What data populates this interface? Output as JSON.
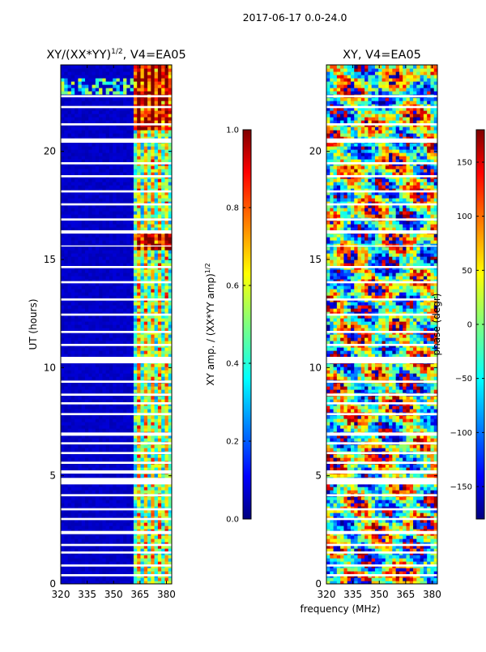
{
  "figure": {
    "suptitle": "2017-06-17 0.0-24.0",
    "xlabel": "frequency (MHz)"
  },
  "colors": {
    "jet": [
      "#00007f",
      "#0000ff",
      "#007fff",
      "#00ffff",
      "#7fff7f",
      "#ffff00",
      "#ff7f00",
      "#ff0000",
      "#7f0000"
    ],
    "gap": "#ffffff"
  },
  "chart_data": [
    {
      "type": "heatmap",
      "title_main": "XY/(XX*YY)",
      "title_sup": "1/2",
      "title_rest": ", V4=EA05",
      "ylabel": "UT (hours)",
      "xlim": [
        320,
        383
      ],
      "ylim": [
        0,
        24
      ],
      "xticks": [
        320,
        335,
        350,
        365,
        380
      ],
      "yticks": [
        0,
        5,
        10,
        15,
        20
      ],
      "colorbar": {
        "label_main": "XY amp. / (XX*YY amp)",
        "label_sup": "1/2",
        "range": [
          0.0,
          1.0
        ],
        "ticks": [
          "0.0",
          "0.2",
          "0.4",
          "0.6",
          "0.8",
          "1.0"
        ]
      },
      "signal_band_MHz": [
        360,
        383
      ],
      "strong_rfi_channels_MHz": [
        360,
        364,
        368,
        372,
        376,
        380
      ],
      "bright_time_ranges_UT": [
        [
          15.3,
          16.2
        ],
        [
          21.0,
          24.0
        ]
      ],
      "data_gaps_UT": [
        [
          0.35,
          0.45
        ],
        [
          0.8,
          0.9
        ],
        [
          1.4,
          1.5
        ],
        [
          1.75,
          1.85
        ],
        [
          2.3,
          2.45
        ],
        [
          2.95,
          3.05
        ],
        [
          3.4,
          3.5
        ],
        [
          4.05,
          4.15
        ],
        [
          4.6,
          4.9
        ],
        [
          5.1,
          5.25
        ],
        [
          5.55,
          5.65
        ],
        [
          6.0,
          6.1
        ],
        [
          6.45,
          6.55
        ],
        [
          6.85,
          7.0
        ],
        [
          7.8,
          7.9
        ],
        [
          8.3,
          8.4
        ],
        [
          8.7,
          8.8
        ],
        [
          9.3,
          9.4
        ],
        [
          10.2,
          10.5
        ],
        [
          11.0,
          11.1
        ],
        [
          11.6,
          11.7
        ],
        [
          12.4,
          12.5
        ],
        [
          13.1,
          13.2
        ],
        [
          13.9,
          14.0
        ],
        [
          14.6,
          14.7
        ],
        [
          15.6,
          15.65
        ],
        [
          16.2,
          16.35
        ],
        [
          16.8,
          16.9
        ],
        [
          17.5,
          17.6
        ],
        [
          18.1,
          18.2
        ],
        [
          18.8,
          18.9
        ],
        [
          19.4,
          19.5
        ],
        [
          20.4,
          20.6
        ],
        [
          21.2,
          21.3
        ],
        [
          22.0,
          22.1
        ],
        [
          22.5,
          22.6
        ]
      ]
    },
    {
      "type": "heatmap",
      "title": "XY, V4=EA05",
      "xlim": [
        320,
        383
      ],
      "ylim": [
        0,
        24
      ],
      "xticks": [
        320,
        335,
        350,
        365,
        380
      ],
      "yticks": [
        0,
        5,
        10,
        15,
        20
      ],
      "colorbar": {
        "label": "phase (degr)",
        "range": [
          -180,
          180
        ],
        "ticks": [
          "150",
          "100",
          "50",
          "0",
          "−50",
          "−100",
          "−150"
        ],
        "tick_values": [
          150,
          100,
          50,
          0,
          -50,
          -100,
          -150
        ]
      },
      "data_gaps_UT": [
        [
          0.35,
          0.45
        ],
        [
          0.8,
          0.9
        ],
        [
          1.4,
          1.5
        ],
        [
          1.75,
          1.85
        ],
        [
          2.3,
          2.45
        ],
        [
          2.95,
          3.05
        ],
        [
          3.4,
          3.5
        ],
        [
          4.05,
          4.15
        ],
        [
          4.6,
          4.9
        ],
        [
          5.1,
          5.25
        ],
        [
          5.55,
          5.65
        ],
        [
          6.0,
          6.1
        ],
        [
          6.45,
          6.55
        ],
        [
          6.85,
          7.0
        ],
        [
          7.8,
          7.9
        ],
        [
          8.3,
          8.4
        ],
        [
          8.7,
          8.8
        ],
        [
          9.3,
          9.4
        ],
        [
          10.2,
          10.5
        ],
        [
          11.0,
          11.1
        ],
        [
          11.6,
          11.7
        ],
        [
          12.4,
          12.5
        ],
        [
          13.1,
          13.2
        ],
        [
          13.9,
          14.0
        ],
        [
          14.6,
          14.7
        ],
        [
          15.6,
          15.65
        ],
        [
          16.2,
          16.35
        ],
        [
          16.8,
          16.9
        ],
        [
          17.5,
          17.6
        ],
        [
          18.1,
          18.2
        ],
        [
          18.8,
          18.9
        ],
        [
          19.4,
          19.5
        ],
        [
          20.4,
          20.6
        ],
        [
          21.2,
          21.3
        ],
        [
          22.0,
          22.1
        ],
        [
          22.5,
          22.6
        ]
      ]
    }
  ]
}
